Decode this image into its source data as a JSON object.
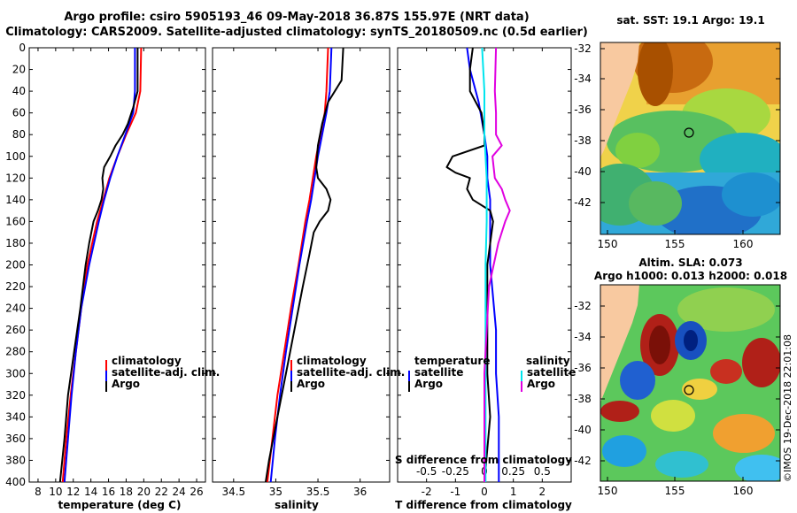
{
  "header": {
    "title_line1": "Argo profile: csiro 5905193_46 09-May-2018 36.87S 155.97E (NRT data)",
    "title_line2": "Climatology: CARS2009. Satellite-adjusted climatology: synTS_20180509.nc (0.5d earlier)"
  },
  "maps": {
    "sst_title": "sat. SST: 19.1 Argo: 19.1",
    "sla_title_line1": "Altim. SLA: 0.073",
    "sla_title_line2": "Argo h1000: 0.013 h2000: 0.018",
    "lat_ticks": [
      "-32",
      "-34",
      "-36",
      "-38",
      "-40",
      "-42"
    ],
    "lon_ticks": [
      "150",
      "155",
      "160"
    ],
    "land_color": "#f8c9a0",
    "marker": "argo-float-position"
  },
  "stamp": "©IMOS 19-Dec-2018 22:01:08",
  "colors": {
    "climatology": "#ff0000",
    "satellite": "#0000ff",
    "argo": "#000000",
    "sal_satellite": "#00e5ee",
    "sal_argo": "#e000e0"
  },
  "chart_data": [
    {
      "type": "line",
      "name": "temperature",
      "xlabel": "temperature (deg C)",
      "ylabel": "",
      "xlim": [
        7,
        27
      ],
      "ylim": [
        400,
        0
      ],
      "xticks": [
        "8",
        "10",
        "12",
        "14",
        "16",
        "18",
        "20",
        "22",
        "24",
        "26"
      ],
      "yticks": [
        "0",
        "20",
        "40",
        "60",
        "80",
        "100",
        "120",
        "140",
        "160",
        "180",
        "200",
        "220",
        "240",
        "260",
        "280",
        "300",
        "320",
        "340",
        "360",
        "380",
        "400"
      ],
      "legend": [
        "climatology",
        "satellite-adj. clim.",
        "Argo"
      ],
      "series": [
        {
          "name": "climatology",
          "depth": [
            0,
            40,
            60,
            80,
            100,
            120,
            140,
            160,
            200,
            240,
            280,
            320,
            360,
            400
          ],
          "values": [
            19.7,
            19.6,
            19.1,
            18.0,
            17.0,
            16.1,
            15.4,
            14.7,
            13.6,
            12.9,
            12.3,
            11.7,
            11.2,
            10.8
          ]
        },
        {
          "name": "satellite-adj. clim.",
          "depth": [
            0,
            40,
            60,
            80,
            100,
            120,
            140,
            160,
            200,
            240,
            280,
            320,
            360,
            400
          ],
          "values": [
            19.0,
            19.0,
            18.8,
            17.9,
            17.0,
            16.2,
            15.5,
            14.9,
            13.8,
            12.9,
            12.3,
            11.8,
            11.4,
            11.0
          ]
        },
        {
          "name": "Argo",
          "depth": [
            0,
            40,
            55,
            70,
            80,
            90,
            100,
            110,
            120,
            130,
            140,
            150,
            160,
            180,
            200,
            240,
            280,
            320,
            360,
            400
          ],
          "values": [
            19.3,
            19.3,
            18.8,
            18.2,
            17.6,
            16.8,
            16.2,
            15.5,
            15.3,
            15.4,
            15.2,
            14.8,
            14.3,
            13.8,
            13.4,
            12.8,
            12.1,
            11.4,
            11.0,
            10.5
          ]
        }
      ]
    },
    {
      "type": "line",
      "name": "salinity",
      "xlabel": "salinity",
      "ylabel": "",
      "xlim": [
        34.25,
        36.35
      ],
      "ylim": [
        400,
        0
      ],
      "xticks": [
        "34.5",
        "35",
        "35.5",
        "36"
      ],
      "legend": [
        "climatology",
        "satellite-adj. clim.",
        "Argo"
      ],
      "series": [
        {
          "name": "climatology",
          "depth": [
            0,
            40,
            60,
            80,
            100,
            120,
            140,
            160,
            200,
            240,
            280,
            320,
            360,
            400
          ],
          "values": [
            35.62,
            35.6,
            35.58,
            35.53,
            35.48,
            35.44,
            35.4,
            35.35,
            35.27,
            35.18,
            35.1,
            35.02,
            34.96,
            34.9
          ]
        },
        {
          "name": "satellite-adj. clim.",
          "depth": [
            0,
            40,
            60,
            80,
            100,
            120,
            140,
            160,
            200,
            240,
            280,
            320,
            360,
            400
          ],
          "values": [
            35.66,
            35.64,
            35.6,
            35.55,
            35.5,
            35.46,
            35.42,
            35.37,
            35.28,
            35.2,
            35.12,
            35.05,
            34.99,
            34.94
          ]
        },
        {
          "name": "Argo",
          "depth": [
            0,
            30,
            50,
            70,
            90,
            110,
            120,
            130,
            140,
            150,
            160,
            170,
            190,
            220,
            260,
            300,
            340,
            380,
            400
          ],
          "values": [
            35.8,
            35.78,
            35.62,
            35.55,
            35.5,
            35.48,
            35.5,
            35.6,
            35.65,
            35.62,
            35.52,
            35.45,
            35.4,
            35.32,
            35.22,
            35.12,
            35.02,
            34.92,
            34.88
          ]
        }
      ]
    },
    {
      "type": "line",
      "name": "differences",
      "xlabel": "T difference from climatology",
      "x2label": "S difference from climatology",
      "xlim": [
        -3,
        3
      ],
      "ylim": [
        400,
        0
      ],
      "xticks": [
        "-2",
        "-1",
        "0",
        "1",
        "2"
      ],
      "x2ticks": [
        "-0.5",
        "-0.25",
        "0",
        "0.25",
        "0.5"
      ],
      "legend_left_title": "temperature",
      "legend_right_title": "salinity",
      "legend_left": [
        "satellite",
        "Argo"
      ],
      "legend_right": [
        "satellite",
        "Argo"
      ],
      "series": [
        {
          "name": "T satellite",
          "depth": [
            0,
            20,
            50,
            80,
            100,
            120,
            140,
            160,
            200,
            260,
            300,
            340,
            400
          ],
          "values": [
            -0.6,
            -0.5,
            -0.2,
            0.0,
            0.1,
            0.1,
            0.2,
            0.2,
            0.2,
            0.4,
            0.4,
            0.5,
            0.5
          ]
        },
        {
          "name": "T Argo",
          "depth": [
            0,
            20,
            40,
            60,
            80,
            90,
            100,
            110,
            115,
            120,
            130,
            140,
            150,
            160,
            200,
            260,
            300,
            340,
            400
          ],
          "values": [
            -0.4,
            -0.5,
            -0.5,
            -0.1,
            0.0,
            0.0,
            -1.1,
            -1.3,
            -1.0,
            -0.5,
            -0.6,
            -0.4,
            0.2,
            0.3,
            0.1,
            0.1,
            0.1,
            0.2,
            0.0
          ]
        },
        {
          "name": "S satellite",
          "depth": [
            0,
            40,
            80,
            120,
            160,
            200,
            260,
            320,
            400
          ],
          "values": [
            -0.02,
            0.0,
            0.0,
            0.02,
            0.02,
            0.01,
            0.01,
            0.01,
            0.01
          ]
        },
        {
          "name": "S Argo",
          "depth": [
            0,
            40,
            60,
            80,
            90,
            100,
            120,
            130,
            140,
            150,
            160,
            180,
            220,
            300,
            360,
            400
          ],
          "values": [
            0.1,
            0.09,
            0.1,
            0.1,
            0.15,
            0.07,
            0.09,
            0.15,
            0.18,
            0.22,
            0.18,
            0.12,
            0.04,
            0.0,
            0.0,
            0.0
          ]
        }
      ]
    }
  ]
}
